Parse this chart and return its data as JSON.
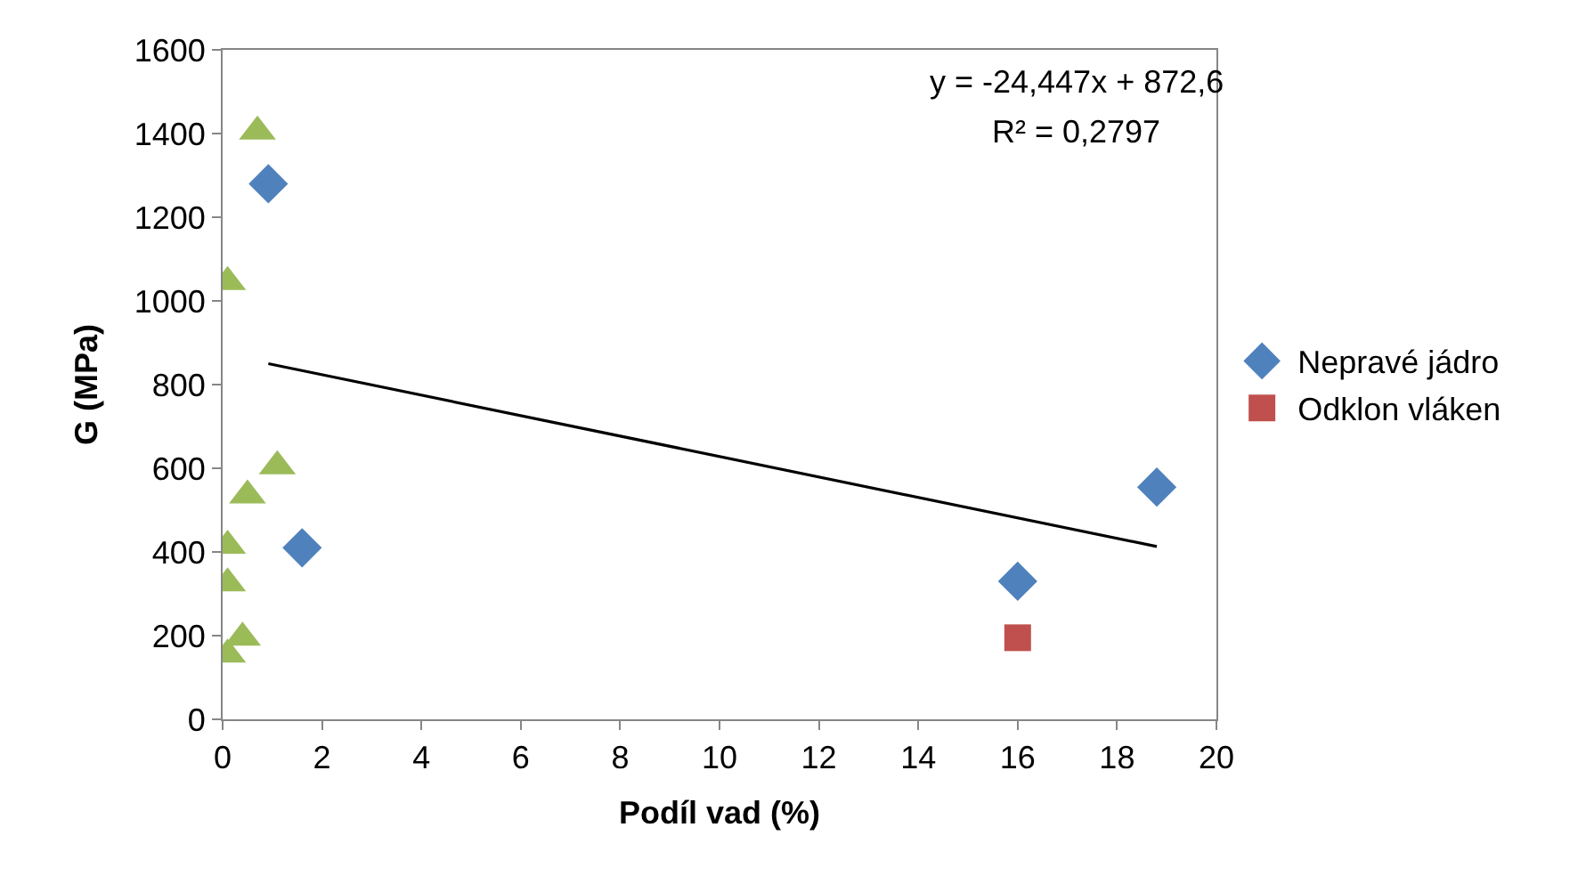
{
  "chart_data": {
    "type": "scatter",
    "xlabel": "Podíl vad (%)",
    "ylabel": "G (MPa)",
    "xlim": [
      0,
      20
    ],
    "xticks": [
      0,
      2,
      4,
      6,
      8,
      10,
      12,
      14,
      16,
      18,
      20
    ],
    "ylim": [
      0,
      1600
    ],
    "yticks": [
      0,
      200,
      400,
      600,
      800,
      1000,
      1200,
      1400,
      1600
    ],
    "legend": "right",
    "annotations": [
      "y = -24,447x + 872,6",
      "R² = 0,2797"
    ],
    "series": [
      {
        "name": "Nepravé jádro",
        "color": "#4f81bd",
        "marker": "diamond",
        "x": [
          0.92,
          1.6,
          16.0,
          18.8
        ],
        "values": [
          1280,
          410,
          330,
          555
        ]
      },
      {
        "name": "Odklon vláken",
        "color": "#c0504d",
        "marker": "square",
        "x": [
          16.0
        ],
        "values": [
          195
        ]
      },
      {
        "color": "#9bbb59",
        "marker": "triangle",
        "x": [
          0.7,
          0.1,
          1.1,
          0.5,
          0.1,
          0.1,
          0.4,
          0.1
        ],
        "values": [
          1405,
          1045,
          605,
          535,
          415,
          325,
          195,
          155
        ]
      },
      {
        "type": "line",
        "color": "#000000",
        "marker": "none",
        "line_style": "solid",
        "x": [
          0.92,
          18.8
        ],
        "values": [
          850,
          413
        ]
      }
    ]
  }
}
